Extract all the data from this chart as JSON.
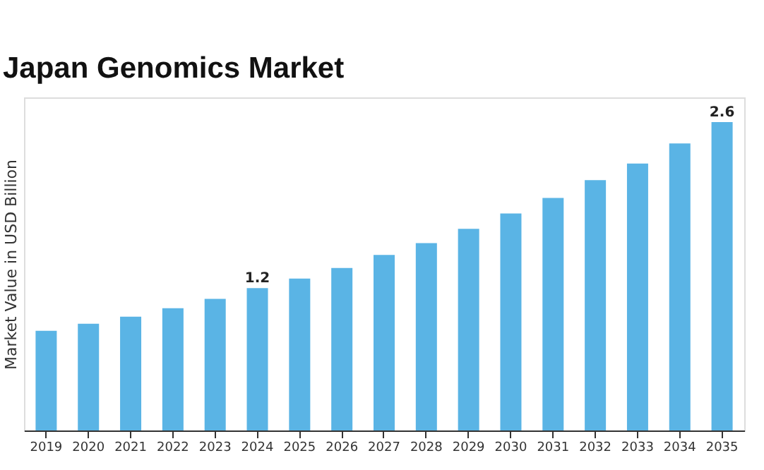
{
  "chart_data": {
    "type": "bar",
    "title": "Japan Genomics Market",
    "ylabel": "Market Value in USD Billion",
    "categories": [
      "2019",
      "2020",
      "2021",
      "2022",
      "2023",
      "2024",
      "2025",
      "2026",
      "2027",
      "2028",
      "2029",
      "2030",
      "2031",
      "2032",
      "2033",
      "2034",
      "2035"
    ],
    "values": [
      0.84,
      0.9,
      0.96,
      1.03,
      1.11,
      1.2,
      1.28,
      1.37,
      1.48,
      1.58,
      1.7,
      1.83,
      1.96,
      2.11,
      2.25,
      2.42,
      2.6
    ],
    "value_labels": [
      null,
      null,
      null,
      null,
      null,
      "1.2",
      null,
      null,
      null,
      null,
      null,
      null,
      null,
      null,
      null,
      null,
      "2.6"
    ],
    "color": "#5ab4e5",
    "grid": false
  }
}
